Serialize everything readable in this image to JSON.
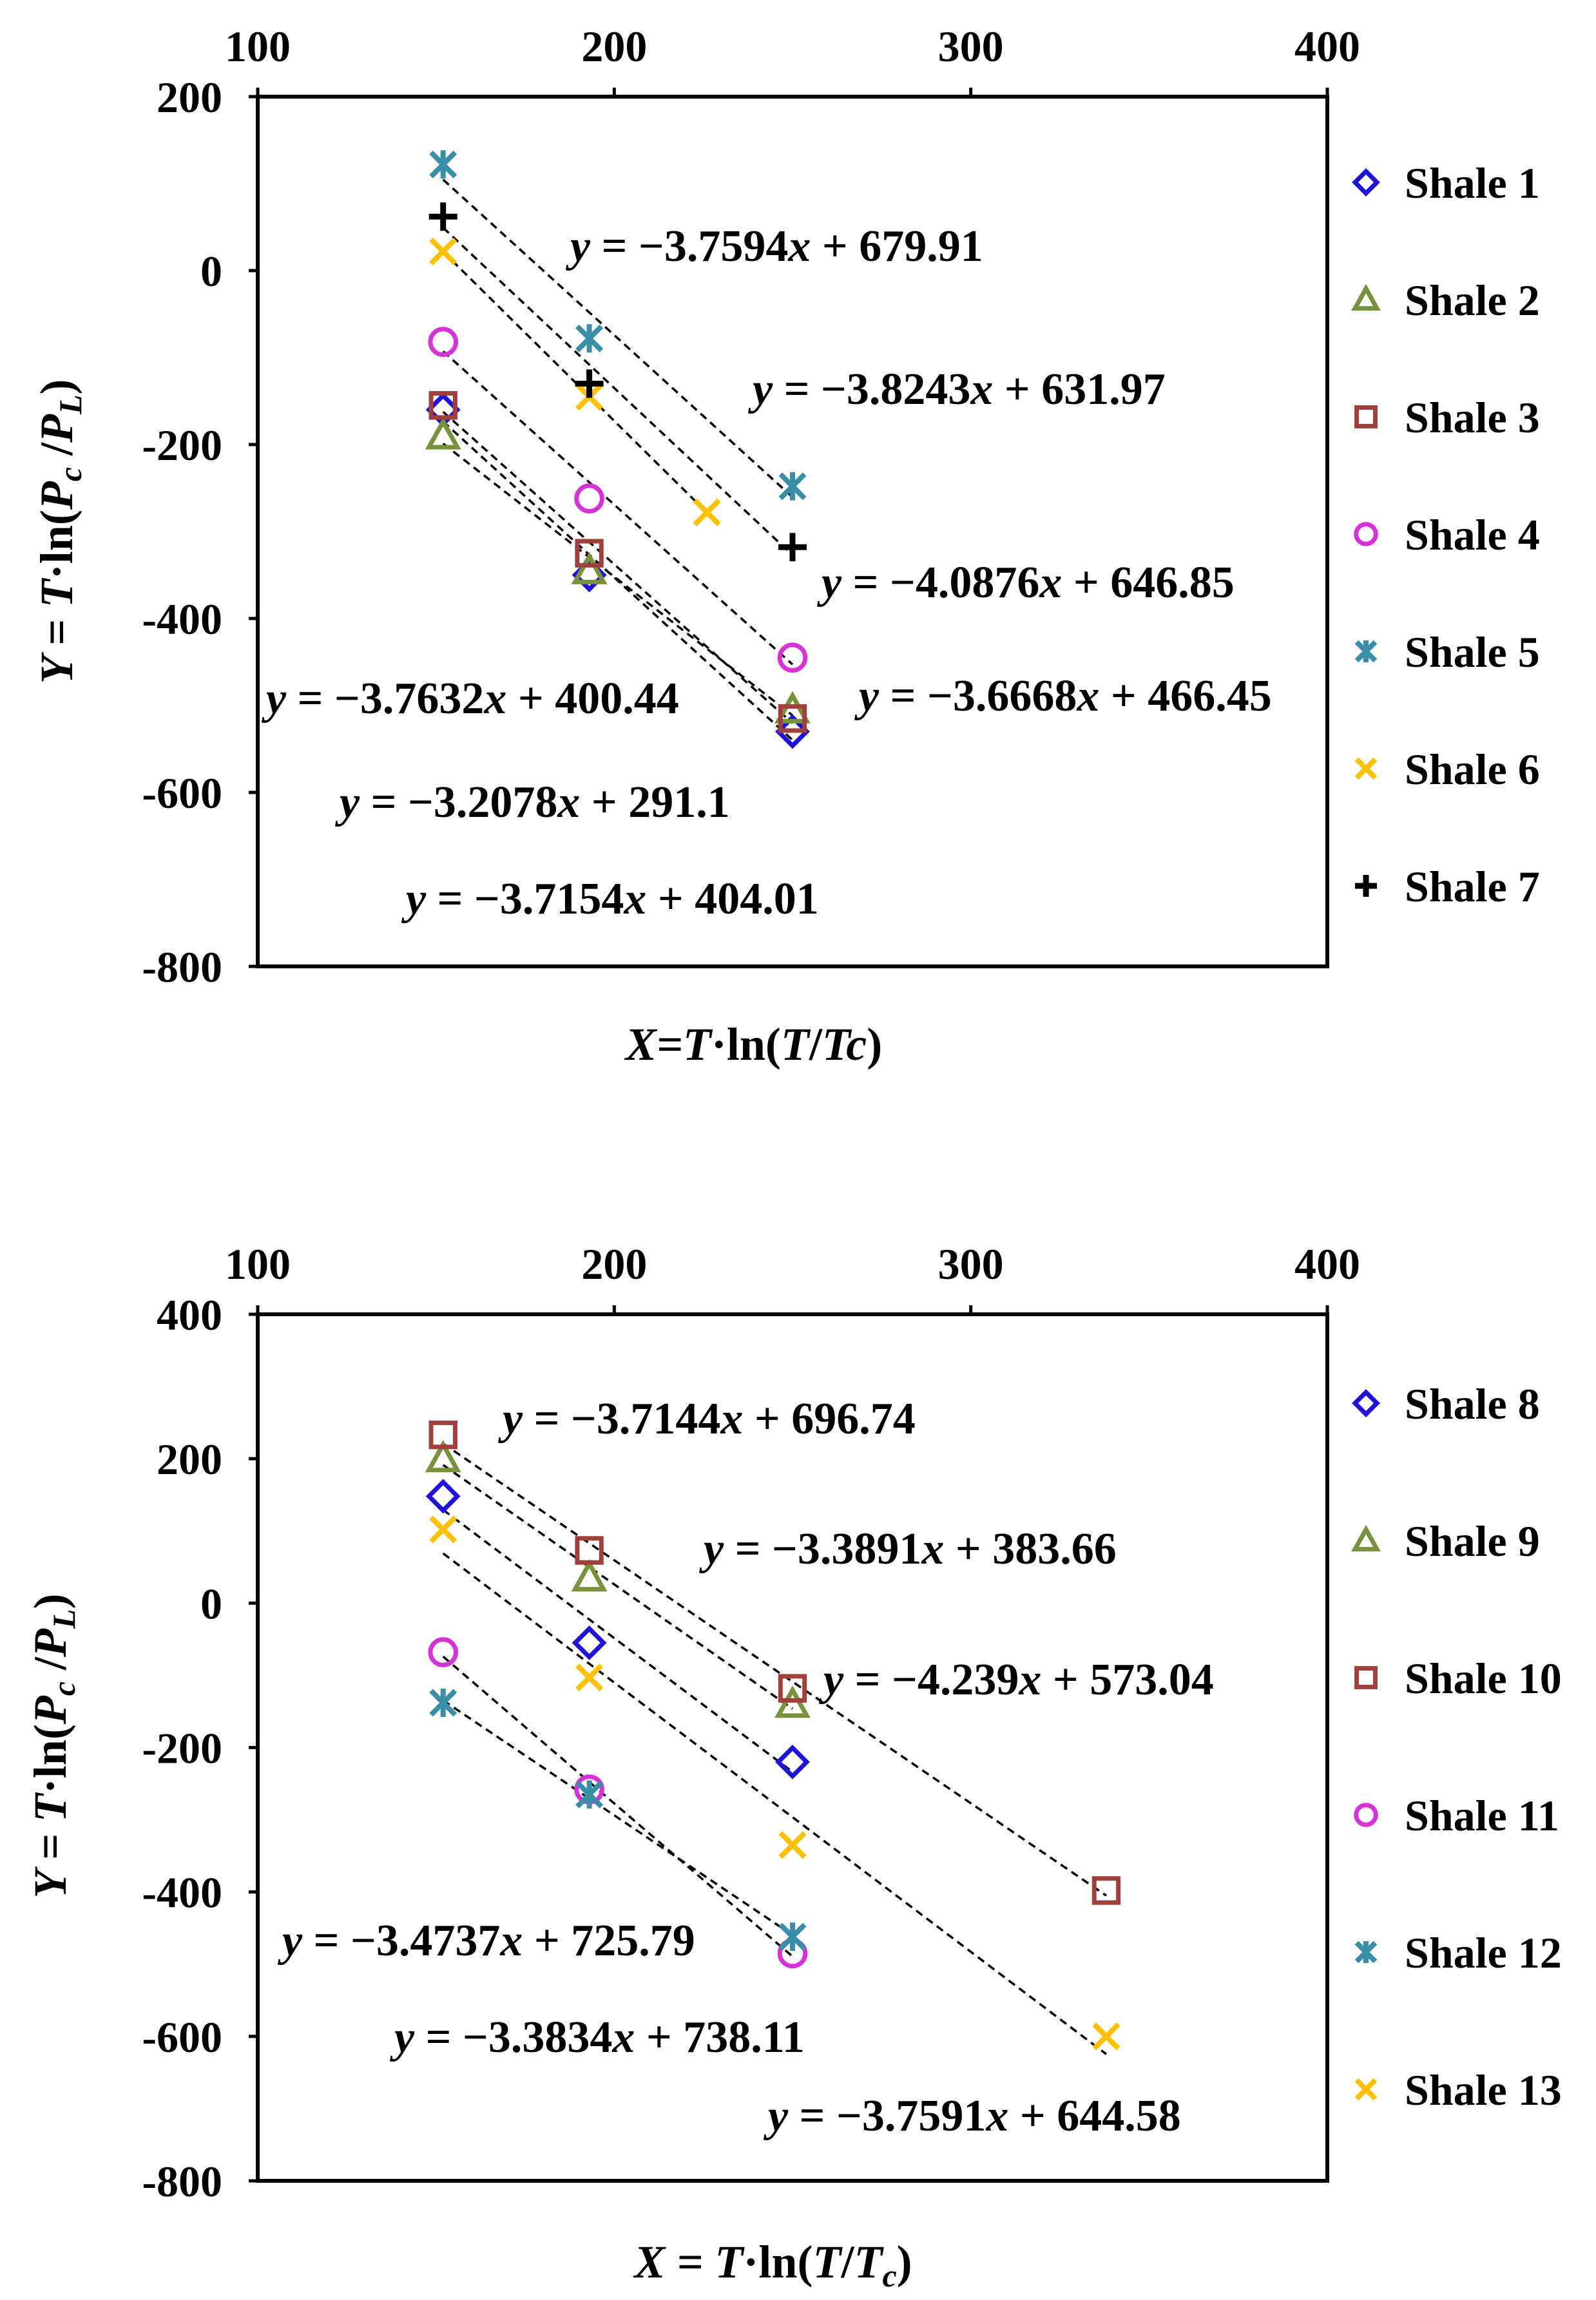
{
  "chart_data": [
    {
      "type": "scatter",
      "x_tick_labels": [
        "100",
        "200",
        "300",
        "400"
      ],
      "y_tick_labels": [
        "200",
        "0",
        "-200",
        "-400",
        "-600",
        "-800"
      ],
      "xlim": [
        100,
        400
      ],
      "ylim": [
        -800,
        200
      ],
      "xlabel": {
        "prefix": "X=",
        "T": "T",
        "mid": "·ln(",
        "T2": "T",
        "slash": "/",
        "Tc": "Tc",
        "close": ")"
      },
      "ylabel": {
        "prefix": "Y = ",
        "T": "T",
        "mid": "·ln(",
        "P": "P",
        "c": "c",
        "slash": " /",
        "P2": "P",
        "L": "L",
        "close": ")"
      },
      "series": [
        {
          "name": "Shale 1",
          "marker": "diamond",
          "color": "#1f14d6",
          "x": [
            152,
            193,
            250
          ],
          "y": [
            -160,
            -350,
            -530
          ],
          "fit": {
            "slope": -3.7632,
            "intercept": 400.44
          }
        },
        {
          "name": "Shale 2",
          "marker": "triangle",
          "color": "#77923c",
          "x": [
            152,
            193,
            250
          ],
          "y": [
            -190,
            -345,
            -505
          ],
          "fit": {
            "slope": -3.2078,
            "intercept": 291.1
          }
        },
        {
          "name": "Shale 3",
          "marker": "square",
          "color": "#a0403c",
          "x": [
            152,
            193,
            250
          ],
          "y": [
            -155,
            -325,
            -515
          ],
          "fit": {
            "slope": -3.7154,
            "intercept": 404.01
          }
        },
        {
          "name": "Shale 4",
          "marker": "circle",
          "color": "#d633d6",
          "x": [
            152,
            193,
            250
          ],
          "y": [
            -82,
            -262,
            -445
          ],
          "fit": {
            "slope": -3.6668,
            "intercept": 466.45
          }
        },
        {
          "name": "Shale 5",
          "marker": "asterisk",
          "color": "#3a8ea8",
          "x": [
            152,
            193,
            250
          ],
          "y": [
            122,
            -78,
            -248
          ],
          "fit": {
            "slope": -3.7594,
            "intercept": 679.91
          }
        },
        {
          "name": "Shale 6",
          "marker": "x",
          "color": "#ffc000",
          "x": [
            152,
            193,
            226
          ],
          "y": [
            22,
            -145,
            -278
          ],
          "fit": {
            "slope": -3.8243,
            "intercept": 631.97
          }
        },
        {
          "name": "Shale 7",
          "marker": "plus",
          "color": "#000000",
          "x": [
            152,
            193,
            250
          ],
          "y": [
            62,
            -130,
            -318
          ],
          "fit": {
            "slope": -4.0876,
            "intercept": 646.85
          }
        }
      ],
      "equations": [
        {
          "lead": "y",
          "text": " = −3.7594",
          "var": "x",
          "tail": " + 679.91"
        },
        {
          "lead": "y",
          "text": " = −3.8243",
          "var": "x",
          "tail": " + 631.97"
        },
        {
          "lead": "y",
          "text": " = −4.0876",
          "var": "x",
          "tail": " + 646.85"
        },
        {
          "lead": "y",
          "text": " = −3.6668",
          "var": "x",
          "tail": " + 466.45"
        },
        {
          "lead": "y",
          "text": " = −3.7632",
          "var": "x",
          "tail": " + 400.44"
        },
        {
          "lead": "y",
          "text": " = −3.2078",
          "var": "x",
          "tail": " + 291.1"
        },
        {
          "lead": "y",
          "text": " = −3.7154",
          "var": "x",
          "tail": " + 404.01"
        }
      ]
    },
    {
      "type": "scatter",
      "x_tick_labels": [
        "100",
        "200",
        "300",
        "400"
      ],
      "y_tick_labels": [
        "400",
        "200",
        "0",
        "-200",
        "-400",
        "-600",
        "-800"
      ],
      "xlim": [
        100,
        400
      ],
      "ylim": [
        -800,
        400
      ],
      "xlabel": {
        "prefix": "X = ",
        "T": "T",
        "mid": "·ln(",
        "T2": "T",
        "slash": "/",
        "Tc": "T",
        "c": "c",
        "close": ")"
      },
      "ylabel": {
        "prefix": "Y = ",
        "T": "T",
        "mid": "·ln(",
        "P": "P",
        "c": "c",
        "slash": " /",
        "P2": "P",
        "L": "L",
        "close": ")"
      },
      "series": [
        {
          "name": "Shale 8",
          "marker": "diamond",
          "color": "#1f14d6",
          "x": [
            152,
            193,
            250
          ],
          "y": [
            148,
            -55,
            -220
          ],
          "fit": {
            "slope": -3.7591,
            "intercept": 644.58
          }
        },
        {
          "name": "Shale 9",
          "marker": "triangle",
          "color": "#77923c",
          "x": [
            152,
            193,
            250
          ],
          "y": [
            200,
            35,
            -140
          ],
          "fit": {
            "slope": -3.7144,
            "intercept": 696.74
          }
        },
        {
          "name": "Shale 10",
          "marker": "square",
          "color": "#a0403c",
          "x": [
            152,
            193,
            250,
            338
          ],
          "y": [
            233,
            73,
            -118,
            -398
          ],
          "fit": {
            "slope": -3.3891,
            "intercept": 383.66
          }
        },
        {
          "name": "Shale 11",
          "marker": "circle",
          "color": "#d633d6",
          "x": [
            152,
            193,
            250
          ],
          "y": [
            -68,
            -258,
            -485
          ],
          "fit": {
            "slope": -4.239,
            "intercept": 573.04
          }
        },
        {
          "name": "Shale 12",
          "marker": "asterisk",
          "color": "#3a8ea8",
          "x": [
            152,
            193,
            250
          ],
          "y": [
            -138,
            -265,
            -462
          ],
          "fit": {
            "slope": -3.4737,
            "intercept": 725.79
          }
        },
        {
          "name": "Shale 13",
          "marker": "x",
          "color": "#ffc000",
          "x": [
            152,
            193,
            250,
            338
          ],
          "y": [
            102,
            -103,
            -335,
            -600
          ],
          "fit": {
            "slope": -3.3834,
            "intercept": 738.11
          }
        }
      ],
      "equations": [
        {
          "lead": "y",
          "text": " = −3.7144",
          "var": "x",
          "tail": " + 696.74"
        },
        {
          "lead": "y",
          "text": " = −3.3891",
          "var": "x",
          "tail": " + 383.66"
        },
        {
          "lead": "y",
          "text": " = −4.239",
          "var": "x",
          "tail": " + 573.04"
        },
        {
          "lead": "y",
          "text": "  = −3.4737",
          "var": "x",
          "tail": " + 725.79"
        },
        {
          "lead": "y",
          "text": " = −3.3834",
          "var": "x",
          "tail": " + 738.11"
        },
        {
          "lead": "y",
          "text": " = −3.7591",
          "var": "x",
          "tail": " + 644.58"
        }
      ]
    }
  ]
}
